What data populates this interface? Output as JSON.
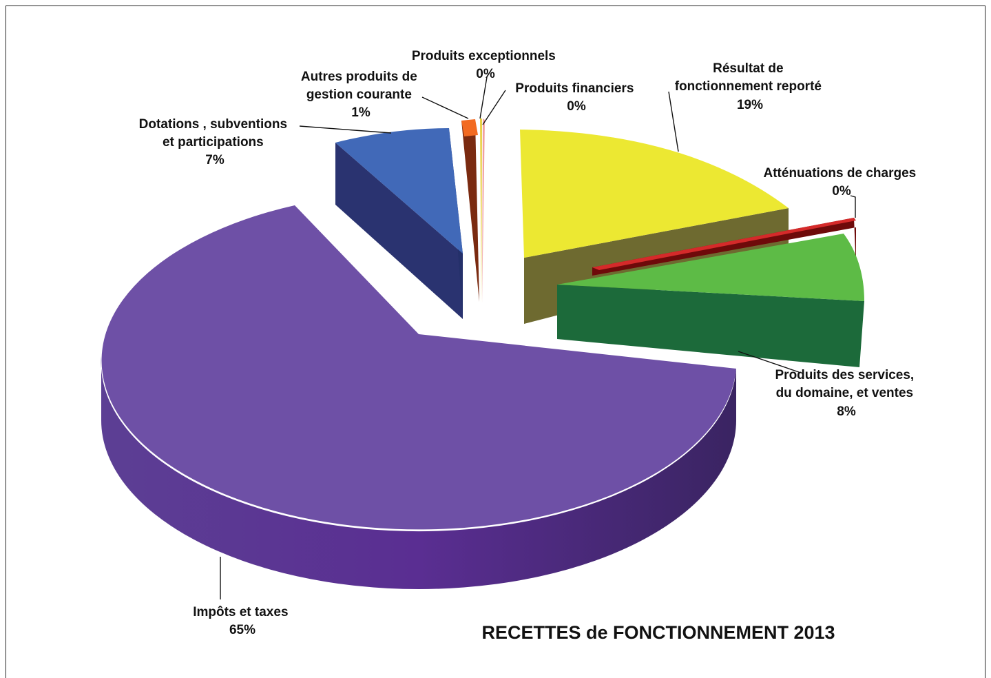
{
  "chart_data": {
    "type": "pie",
    "title": "RECETTES de FONCTIONNEMENT 2013",
    "slices": [
      {
        "key": "impots",
        "label_lines": [
          "Impôts et taxes"
        ],
        "percent_label": "65%",
        "value": 65,
        "color": "#6E50A6"
      },
      {
        "key": "dotations",
        "label_lines": [
          "Dotations , subventions",
          "et participations"
        ],
        "percent_label": "7%",
        "value": 7,
        "color": "#4169B8"
      },
      {
        "key": "autres",
        "label_lines": [
          "Autres produits de",
          "gestion courante"
        ],
        "percent_label": "1%",
        "value": 1,
        "color": "#F26A21"
      },
      {
        "key": "exceptionnels",
        "label_lines": [
          "Produits exceptionnels"
        ],
        "percent_label": "0%",
        "value": 0,
        "color": "#E8D040"
      },
      {
        "key": "financiers",
        "label_lines": [
          "Produits financiers"
        ],
        "percent_label": "0%",
        "value": 0,
        "color": "#F0A0A0"
      },
      {
        "key": "resultat",
        "label_lines": [
          "Résultat de",
          "fonctionnement reporté"
        ],
        "percent_label": "19%",
        "value": 19,
        "color": "#ECE832"
      },
      {
        "key": "attenuations",
        "label_lines": [
          "Atténuations de charges"
        ],
        "percent_label": "0%",
        "value": 0,
        "color": "#C41E1E"
      },
      {
        "key": "services",
        "label_lines": [
          "Produits des services,",
          "du domaine, et ventes"
        ],
        "percent_label": "8%",
        "value": 8,
        "color": "#5DBB46"
      }
    ]
  }
}
